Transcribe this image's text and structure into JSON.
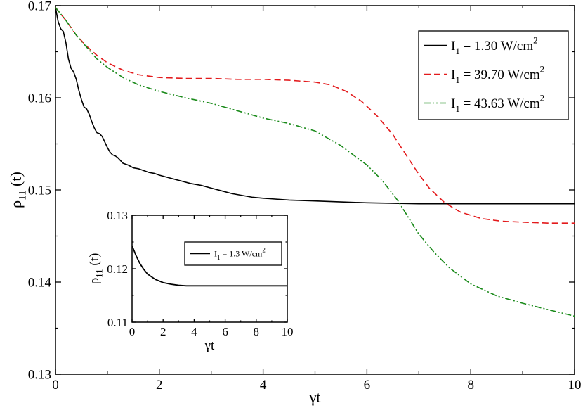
{
  "chart_data": [
    {
      "type": "line",
      "xlabel": "γt",
      "ylabel": "ρ11 (t)",
      "xlim": [
        0,
        10
      ],
      "ylim": [
        0.13,
        0.17
      ],
      "xticks": [
        "0",
        "2",
        "4",
        "6",
        "8",
        "10"
      ],
      "yticks": [
        "0.13",
        "0.14",
        "0.15",
        "0.16",
        "0.17"
      ],
      "legend_position": "top-right",
      "series": [
        {
          "name": "I1 = 1.30 W/cm2",
          "legend": {
            "main": "I",
            "sub": "1",
            "eq": " = 1.30 W/cm",
            "sup": "2"
          },
          "color": "#000000",
          "dash": "solid",
          "x": [
            0,
            0.05,
            0.1,
            0.15,
            0.2,
            0.25,
            0.3,
            0.35,
            0.4,
            0.45,
            0.5,
            0.55,
            0.6,
            0.65,
            0.7,
            0.75,
            0.8,
            0.85,
            0.9,
            0.95,
            1.0,
            1.05,
            1.1,
            1.15,
            1.2,
            1.25,
            1.3,
            1.35,
            1.4,
            1.5,
            1.6,
            1.7,
            1.8,
            1.9,
            2.0,
            2.2,
            2.4,
            2.6,
            2.8,
            3.0,
            3.2,
            3.4,
            3.6,
            3.8,
            4.0,
            4.5,
            5.0,
            5.5,
            6.0,
            7.0,
            8.0,
            9.0,
            10.0
          ],
          "y": [
            0.1698,
            0.1683,
            0.1675,
            0.1672,
            0.166,
            0.1642,
            0.1632,
            0.1628,
            0.162,
            0.1608,
            0.1598,
            0.159,
            0.1588,
            0.1582,
            0.1574,
            0.1567,
            0.1562,
            0.1561,
            0.1558,
            0.1552,
            0.1546,
            0.1541,
            0.1538,
            0.1537,
            0.1535,
            0.1532,
            0.1529,
            0.1528,
            0.1527,
            0.1524,
            0.1523,
            0.1521,
            0.1519,
            0.1518,
            0.1516,
            0.1513,
            0.151,
            0.1507,
            0.1505,
            0.1502,
            0.1499,
            0.1496,
            0.1494,
            0.1492,
            0.1491,
            0.1489,
            0.1488,
            0.1487,
            0.1486,
            0.1485,
            0.1485,
            0.1485,
            0.1485
          ]
        },
        {
          "name": "I1 = 39.70 W/cm2",
          "legend": {
            "main": "I",
            "sub": "1",
            "eq": " = 39.70 W/cm",
            "sup": "2"
          },
          "color": "#e31a1c",
          "dash": "dashed",
          "x": [
            0,
            0.2,
            0.4,
            0.6,
            0.8,
            1.0,
            1.3,
            1.6,
            2.0,
            2.5,
            3.0,
            3.5,
            4.0,
            4.5,
            5.0,
            5.3,
            5.6,
            5.9,
            6.2,
            6.5,
            6.8,
            7.0,
            7.2,
            7.5,
            7.8,
            8.2,
            8.6,
            9.0,
            9.5,
            10.0
          ],
          "y": [
            0.1698,
            0.1684,
            0.1668,
            0.1656,
            0.1646,
            0.1638,
            0.163,
            0.1625,
            0.1622,
            0.1621,
            0.1621,
            0.162,
            0.162,
            0.1619,
            0.1617,
            0.1614,
            0.1607,
            0.1596,
            0.158,
            0.156,
            0.1534,
            0.1517,
            0.1502,
            0.1486,
            0.1476,
            0.1469,
            0.1466,
            0.1465,
            0.1464,
            0.1464
          ]
        },
        {
          "name": "I1 = 43.63 W/cm2",
          "legend": {
            "main": "I",
            "sub": "1",
            "eq": " = 43.63 W/cm",
            "sup": "2"
          },
          "color": "#1a8a1a",
          "dash": "dashdotdot",
          "x": [
            0,
            0.2,
            0.4,
            0.6,
            0.8,
            1.0,
            1.3,
            1.6,
            2.0,
            2.5,
            3.0,
            3.5,
            4.0,
            4.5,
            5.0,
            5.5,
            6.0,
            6.3,
            6.6,
            6.8,
            7.0,
            7.3,
            7.6,
            8.0,
            8.5,
            9.0,
            9.5,
            10.0
          ],
          "y": [
            0.1698,
            0.1684,
            0.1668,
            0.1655,
            0.1642,
            0.1633,
            0.1622,
            0.1614,
            0.1607,
            0.16,
            0.1594,
            0.1586,
            0.1578,
            0.1572,
            0.1564,
            0.1548,
            0.1527,
            0.151,
            0.1488,
            0.147,
            0.1452,
            0.1432,
            0.1415,
            0.1398,
            0.1385,
            0.1377,
            0.137,
            0.1363
          ]
        }
      ]
    },
    {
      "type": "line",
      "inset": true,
      "xlabel": "γt",
      "ylabel": "ρ11 (t)",
      "xlim": [
        0,
        10
      ],
      "ylim": [
        0.11,
        0.13
      ],
      "xticks": [
        "0",
        "2",
        "4",
        "6",
        "8",
        "10"
      ],
      "yticks": [
        "0.11",
        "0.12",
        "0.13"
      ],
      "legend_position": "top-right",
      "series": [
        {
          "name": "I1 = 1.3 W/cm2",
          "legend": {
            "main": "I",
            "sub": "1",
            "eq": " = 1.3 W/cm",
            "sup": "2"
          },
          "color": "#000000",
          "dash": "solid",
          "x": [
            0,
            0.25,
            0.5,
            0.75,
            1.0,
            1.5,
            2.0,
            2.5,
            3.0,
            3.5,
            4.0,
            5.0,
            6.0,
            7.0,
            8.0,
            9.0,
            10.0
          ],
          "y": [
            0.1243,
            0.1225,
            0.121,
            0.1199,
            0.119,
            0.118,
            0.1174,
            0.1171,
            0.1169,
            0.1168,
            0.1168,
            0.1168,
            0.1168,
            0.1168,
            0.1168,
            0.1168,
            0.1168
          ]
        }
      ]
    }
  ]
}
